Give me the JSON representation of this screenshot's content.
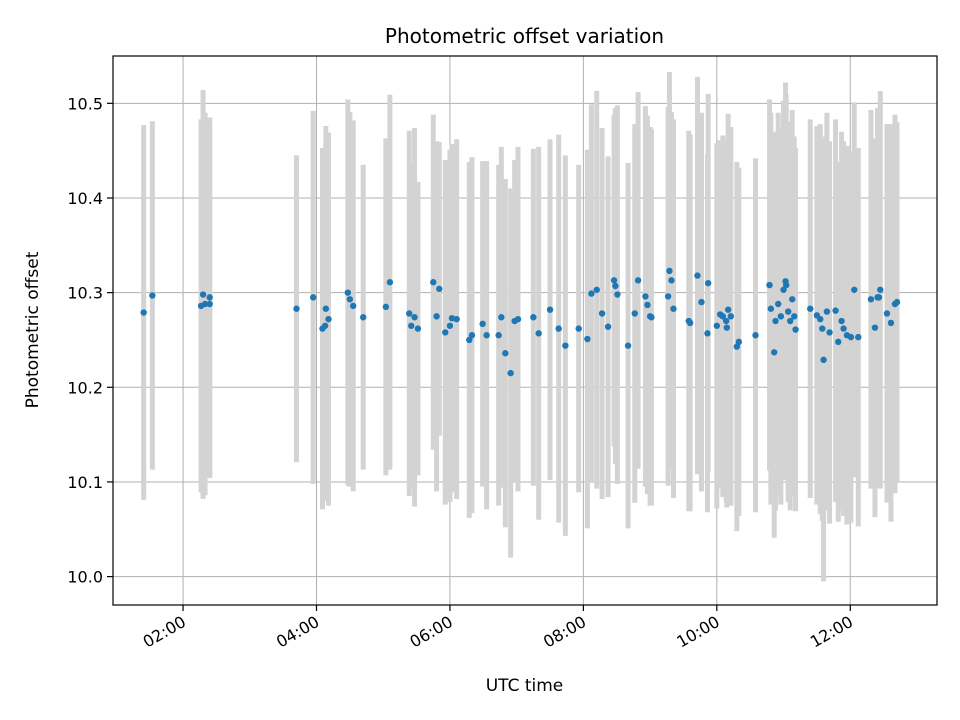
{
  "chart_data": {
    "type": "scatter",
    "title": "Photometric offset variation",
    "xlabel": "UTC time",
    "ylabel": "Photometric offset",
    "x_unit": "hours UTC",
    "xlim": [
      0.95,
      13.3
    ],
    "ylim": [
      9.97,
      10.55
    ],
    "x_ticks": [
      {
        "value": 2,
        "label": "02:00"
      },
      {
        "value": 4,
        "label": "04:00"
      },
      {
        "value": 6,
        "label": "06:00"
      },
      {
        "value": 8,
        "label": "08:00"
      },
      {
        "value": 10,
        "label": "10:00"
      },
      {
        "value": 12,
        "label": "12:00"
      }
    ],
    "y_ticks": [
      {
        "value": 10.0,
        "label": "10.0"
      },
      {
        "value": 10.1,
        "label": "10.1"
      },
      {
        "value": 10.2,
        "label": "10.2"
      },
      {
        "value": 10.3,
        "label": "10.3"
      },
      {
        "value": 10.4,
        "label": "10.4"
      },
      {
        "value": 10.5,
        "label": "10.5"
      }
    ],
    "grid": true,
    "marker_color": "#1f77b4",
    "errorbar_color": "#d3d3d3",
    "points": [
      [
        1.41,
        10.279,
        0.198
      ],
      [
        1.54,
        10.297,
        0.184
      ],
      [
        2.27,
        10.286,
        0.197
      ],
      [
        2.3,
        10.298,
        0.216
      ],
      [
        2.33,
        10.288,
        0.202
      ],
      [
        2.4,
        10.295,
        0.19
      ],
      [
        2.4,
        10.288,
        0.184
      ],
      [
        3.7,
        10.283,
        0.162
      ],
      [
        3.95,
        10.295,
        0.197
      ],
      [
        4.09,
        10.262,
        0.191
      ],
      [
        4.14,
        10.283,
        0.193
      ],
      [
        4.18,
        10.272,
        0.197
      ],
      [
        4.13,
        10.265,
        0.185
      ],
      [
        4.47,
        10.3,
        0.204
      ],
      [
        4.5,
        10.293,
        0.198
      ],
      [
        4.55,
        10.286,
        0.196
      ],
      [
        4.7,
        10.274,
        0.161
      ],
      [
        5.04,
        10.285,
        0.178
      ],
      [
        5.1,
        10.311,
        0.198
      ],
      [
        5.39,
        10.278,
        0.193
      ],
      [
        5.42,
        10.265,
        0.171
      ],
      [
        5.47,
        10.274,
        0.2
      ],
      [
        5.52,
        10.262,
        0.155
      ],
      [
        5.75,
        10.311,
        0.177
      ],
      [
        5.8,
        10.275,
        0.185
      ],
      [
        5.84,
        10.304,
        0.155
      ],
      [
        5.93,
        10.258,
        0.182
      ],
      [
        6.0,
        10.265,
        0.186
      ],
      [
        6.03,
        10.273,
        0.184
      ],
      [
        6.29,
        10.25,
        0.188
      ],
      [
        6.33,
        10.255,
        0.188
      ],
      [
        6.49,
        10.267,
        0.172
      ],
      [
        6.55,
        10.255,
        0.184
      ],
      [
        6.73,
        10.255,
        0.18
      ],
      [
        6.77,
        10.274,
        0.18
      ],
      [
        6.83,
        10.236,
        0.184
      ],
      [
        6.91,
        10.215,
        0.195
      ],
      [
        7.02,
        10.272,
        0.182
      ],
      [
        7.25,
        10.274,
        0.178
      ],
      [
        7.33,
        10.257,
        0.197
      ],
      [
        7.5,
        10.282,
        0.18
      ],
      [
        7.63,
        10.262,
        0.205
      ],
      [
        7.73,
        10.244,
        0.201
      ],
      [
        7.93,
        10.262,
        0.173
      ],
      [
        8.06,
        10.251,
        0.2
      ],
      [
        8.12,
        10.299,
        0.2
      ],
      [
        8.2,
        10.303,
        0.21
      ],
      [
        8.28,
        10.278,
        0.196
      ],
      [
        8.37,
        10.264,
        0.18
      ],
      [
        8.46,
        10.313,
        0.175
      ],
      [
        8.48,
        10.307,
        0.188
      ],
      [
        8.51,
        10.298,
        0.2
      ],
      [
        8.67,
        10.244,
        0.193
      ],
      [
        8.77,
        10.278,
        0.2
      ],
      [
        8.82,
        10.313,
        0.199
      ],
      [
        8.93,
        10.296,
        0.201
      ],
      [
        8.96,
        10.287,
        0.2
      ],
      [
        9.0,
        10.275,
        0.2
      ],
      [
        9.27,
        10.296,
        0.2
      ],
      [
        9.29,
        10.323,
        0.21
      ],
      [
        9.32,
        10.313,
        0.178
      ],
      [
        9.35,
        10.283,
        0.2
      ],
      [
        9.58,
        10.27,
        0.201
      ],
      [
        9.6,
        10.268,
        0.199
      ],
      [
        9.71,
        10.318,
        0.21
      ],
      [
        9.77,
        10.29,
        0.2
      ],
      [
        9.86,
        10.257,
        0.189
      ],
      [
        9.87,
        10.31,
        0.2
      ],
      [
        10.0,
        10.265,
        0.193
      ],
      [
        10.05,
        10.277,
        0.184
      ],
      [
        10.09,
        10.275,
        0.191
      ],
      [
        10.14,
        10.27,
        0.191
      ],
      [
        10.17,
        10.282,
        0.207
      ],
      [
        10.21,
        10.275,
        0.2
      ],
      [
        10.3,
        10.243,
        0.195
      ],
      [
        10.33,
        10.248,
        0.184
      ],
      [
        10.15,
        10.263,
        0.19
      ],
      [
        10.58,
        10.255,
        0.187
      ],
      [
        10.79,
        10.308,
        0.196
      ],
      [
        10.81,
        10.283,
        0.207
      ],
      [
        10.86,
        10.237,
        0.196
      ],
      [
        10.88,
        10.27,
        0.2
      ],
      [
        10.92,
        10.288,
        0.202
      ],
      [
        10.96,
        10.275,
        0.199
      ],
      [
        11.0,
        10.303,
        0.2
      ],
      [
        11.03,
        10.312,
        0.21
      ],
      [
        11.04,
        10.308,
        0.201
      ],
      [
        11.07,
        10.28,
        0.201
      ],
      [
        11.1,
        10.27,
        0.2
      ],
      [
        11.13,
        10.293,
        0.2
      ],
      [
        11.16,
        10.275,
        0.19
      ],
      [
        11.18,
        10.261,
        0.192
      ],
      [
        11.4,
        10.283,
        0.2
      ],
      [
        11.5,
        10.276,
        0.2
      ],
      [
        11.55,
        10.272,
        0.206
      ],
      [
        11.58,
        10.262,
        0.203
      ],
      [
        11.6,
        10.229,
        0.234
      ],
      [
        11.65,
        10.28,
        0.21
      ],
      [
        11.69,
        10.258,
        0.202
      ],
      [
        11.78,
        10.281,
        0.202
      ],
      [
        11.82,
        10.248,
        0.19
      ],
      [
        11.87,
        10.27,
        0.2
      ],
      [
        11.9,
        10.262,
        0.198
      ],
      [
        11.95,
        10.255,
        0.2
      ],
      [
        12.01,
        10.253,
        0.196
      ],
      [
        12.06,
        10.303,
        0.198
      ],
      [
        12.12,
        10.253,
        0.2
      ],
      [
        12.31,
        10.293,
        0.2
      ],
      [
        12.37,
        10.263,
        0.2
      ],
      [
        12.41,
        10.295,
        0.2
      ],
      [
        12.45,
        10.303,
        0.21
      ],
      [
        12.55,
        10.278,
        0.2
      ],
      [
        12.61,
        10.268,
        0.21
      ],
      [
        12.67,
        10.288,
        0.2
      ],
      [
        12.7,
        10.29,
        0.19
      ],
      [
        12.43,
        10.295,
        0.197
      ],
      [
        9.02,
        10.274,
        0.199
      ],
      [
        6.97,
        10.27,
        0.17
      ],
      [
        6.1,
        10.272,
        0.19
      ]
    ]
  }
}
